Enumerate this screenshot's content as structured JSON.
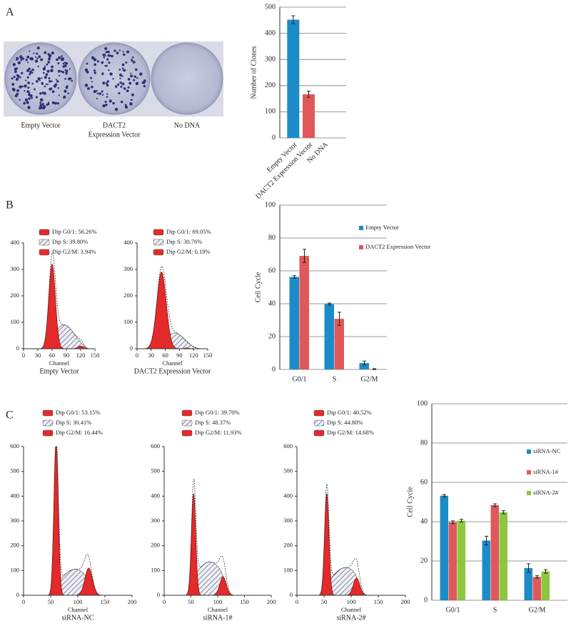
{
  "figure": {
    "panel_labels": [
      "A",
      "B",
      "C"
    ],
    "photo_captions": [
      "Empty Vector",
      [
        "DACT2",
        "Expression Vector"
      ],
      "No DNA"
    ]
  },
  "chart_data": [
    {
      "type": "bar",
      "ylabel": "Number of Clones",
      "categories": [
        "Empty Vector",
        "DACT2 Expression Vector",
        "No DNA"
      ],
      "values": [
        452,
        167,
        0
      ],
      "errors": [
        15,
        12,
        null
      ],
      "colors": [
        "#1c8cc8",
        "#e0585a",
        "#1c8cc8"
      ],
      "ylim": [
        0,
        500
      ],
      "yticks": [
        0,
        100,
        200,
        300,
        400,
        500
      ],
      "grid": true
    },
    {
      "type": "flow",
      "legend": [
        "Dip G0/1: 56.26%",
        "Dip S: 39.80%",
        "Dip G2/M: 3.94%"
      ],
      "xlabel": "Channel",
      "caption": "Empty Vector",
      "xlim": [
        0,
        150
      ],
      "xticks": [
        0,
        30,
        60,
        90,
        120,
        150
      ],
      "ylim": [
        0,
        400
      ],
      "yticks": [
        0,
        100,
        200,
        300,
        400
      ]
    },
    {
      "type": "flow",
      "legend": [
        "Dip G0/1: 69.05%",
        "Dip S: 30.76%",
        "Dip G2/M: 0.19%"
      ],
      "xlabel": "Channel",
      "caption": "DACT2 Expression Vector",
      "xlim": [
        0,
        150
      ],
      "xticks": [
        0,
        30,
        60,
        90,
        120,
        150
      ],
      "ylim": [
        0,
        400
      ],
      "yticks": [
        0,
        100,
        200,
        300,
        400
      ]
    },
    {
      "type": "grouped",
      "ylabel": "Cell Cycle",
      "categories": [
        "G0/1",
        "S",
        "G2/M"
      ],
      "series": [
        {
          "name": "Empty Vector",
          "color": "#1c8cc8",
          "values": [
            56.3,
            39.8,
            3.9
          ],
          "errors": [
            0.8,
            0.6,
            1.2
          ]
        },
        {
          "name": "DACT2 Expression Vector",
          "color": "#e0585a",
          "values": [
            69.1,
            30.8,
            0.2
          ],
          "errors": [
            4,
            4,
            0.3
          ]
        }
      ],
      "ylim": [
        0,
        100
      ],
      "yticks": [
        0,
        20,
        40,
        60,
        80,
        100
      ],
      "grid": true
    },
    {
      "type": "flow",
      "legend": [
        "Dip G0/1: 53.15%",
        "Dip S: 30.41%",
        "Dip G2/M: 16.44%"
      ],
      "xlabel": "Channel",
      "caption": "siRNA-NC",
      "xlim": [
        0,
        200
      ],
      "xticks": [
        0,
        50,
        100,
        150,
        200
      ],
      "ylim": [
        0,
        600
      ],
      "yticks": [
        0,
        100,
        200,
        300,
        400,
        500,
        600
      ]
    },
    {
      "type": "flow",
      "legend": [
        "Dip G0/1: 39.70%",
        "Dip S: 48.37%",
        "Dip G2/M: 11.93%"
      ],
      "xlabel": "Channel",
      "caption": "siRNA-1#",
      "xlim": [
        0,
        200
      ],
      "xticks": [
        0,
        50,
        100,
        150,
        200
      ],
      "ylim": [
        0,
        600
      ],
      "yticks": [
        0,
        100,
        200,
        300,
        400,
        500,
        600
      ]
    },
    {
      "type": "flow",
      "legend": [
        "Dip G0/1: 40.52%",
        "Dip S: 44.80%",
        "Dip G2/M: 14.68%"
      ],
      "xlabel": "Channel",
      "caption": "siRNA-2#",
      "xlim": [
        0,
        200
      ],
      "xticks": [
        0,
        50,
        100,
        150,
        200
      ],
      "ylim": [
        0,
        600
      ],
      "yticks": [
        0,
        100,
        200,
        300,
        400,
        500,
        600
      ]
    },
    {
      "type": "grouped",
      "ylabel": "Cell Cycle",
      "categories": [
        "G0/1",
        "S",
        "G2/M"
      ],
      "series": [
        {
          "name": "siRNA-NC",
          "color": "#1c8cc8",
          "values": [
            53.2,
            30.4,
            16.4
          ],
          "errors": [
            0.6,
            2.2,
            2.2
          ]
        },
        {
          "name": "siRNA-1#",
          "color": "#e0585a",
          "values": [
            39.7,
            48.4,
            11.9
          ],
          "errors": [
            0.7,
            0.7,
            0.6
          ]
        },
        {
          "name": "siRNA-2#",
          "color": "#8dc63f",
          "values": [
            40.5,
            44.8,
            14.7
          ],
          "errors": [
            0.7,
            0.8,
            0.9
          ]
        }
      ],
      "ylim": [
        0,
        100
      ],
      "yticks": [
        0,
        20,
        40,
        60,
        80,
        100
      ],
      "grid": true
    }
  ]
}
